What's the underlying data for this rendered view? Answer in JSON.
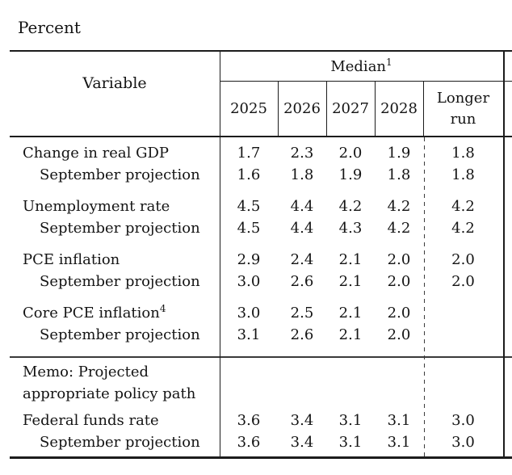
{
  "unit_label": "Percent",
  "table": {
    "corner_header": "Variable",
    "group_header": {
      "label": "Median",
      "sup": "1"
    },
    "columns": {
      "y2025": "2025",
      "y2026": "2026",
      "y2027": "2027",
      "y2028": "2028",
      "longer_run": "Longer run"
    },
    "rows": [
      {
        "label": "Change in real GDP",
        "values": [
          "1.7",
          "2.3",
          "2.0",
          "1.9"
        ],
        "longer_run": "1.8"
      },
      {
        "label": "September projection",
        "values": [
          "1.6",
          "1.8",
          "1.9",
          "1.8"
        ],
        "longer_run": "1.8"
      },
      {
        "label": "Unemployment rate",
        "values": [
          "4.5",
          "4.4",
          "4.2",
          "4.2"
        ],
        "longer_run": "4.2"
      },
      {
        "label": "September projection",
        "values": [
          "4.5",
          "4.4",
          "4.3",
          "4.2"
        ],
        "longer_run": "4.2"
      },
      {
        "label": "PCE inflation",
        "values": [
          "2.9",
          "2.4",
          "2.1",
          "2.0"
        ],
        "longer_run": "2.0"
      },
      {
        "label": "September projection",
        "values": [
          "3.0",
          "2.6",
          "2.1",
          "2.0"
        ],
        "longer_run": "2.0"
      },
      {
        "label": "Core PCE inflation",
        "label_sup": "4",
        "values": [
          "3.0",
          "2.5",
          "2.1",
          "2.0"
        ],
        "longer_run": ""
      },
      {
        "label": "September projection",
        "values": [
          "3.1",
          "2.6",
          "2.1",
          "2.0"
        ],
        "longer_run": ""
      }
    ],
    "memo": {
      "label_lines": [
        "Memo: Projected",
        "appropriate policy path"
      ],
      "rows": [
        {
          "label": "Federal funds rate",
          "values": [
            "3.6",
            "3.4",
            "3.1",
            "3.1"
          ],
          "longer_run": "3.0"
        },
        {
          "label": "September projection",
          "values": [
            "3.6",
            "3.4",
            "3.1",
            "3.1"
          ],
          "longer_run": "3.0"
        }
      ]
    }
  }
}
